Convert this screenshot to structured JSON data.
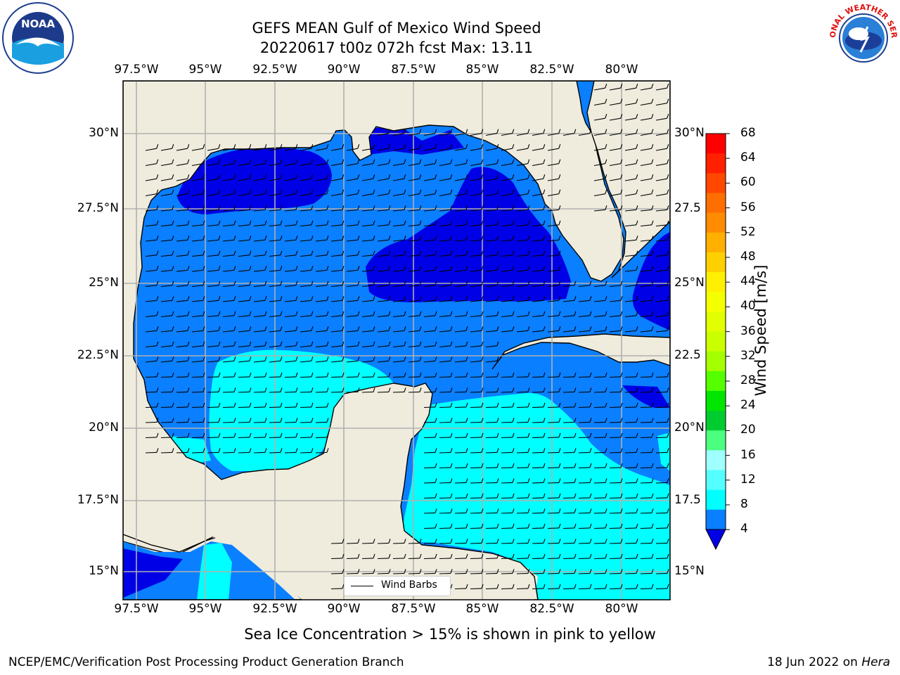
{
  "title": {
    "line1": "GEFS MEAN Gulf of Mexico Wind Speed",
    "line2": "20220617 t00z 072h fcst   Max: 13.11"
  },
  "logos": {
    "left": {
      "name": "NOAA",
      "ring_text": "NATIONAL OCEANIC AND ATMOSPHERIC ADMINISTRATION · U.S. DEPARTMENT OF COMMERCE"
    },
    "right": {
      "ring_text": "NATIONAL WEATHER SERVICE"
    }
  },
  "map": {
    "lon_labels": [
      "97.5°W",
      "95°W",
      "92.5°W",
      "90°W",
      "87.5°W",
      "85°W",
      "82.5°W",
      "80°W"
    ],
    "lat_labels_left": [
      "30°N",
      "27.5°N",
      "25°N",
      "22.5°N",
      "20°N",
      "17.5°N",
      "15°N"
    ],
    "lat_labels_right": [
      "30°N",
      "27.5",
      "25°N",
      "22.5",
      "20°N",
      "17.5",
      "15°N"
    ],
    "legend_label": "Wind Barbs",
    "colors": {
      "land": "#efecdd",
      "wind_lt8": "#0a7fff",
      "wind_lt4": "#0000e6",
      "wind_8_12": "#00ffff"
    }
  },
  "colorbar": {
    "label": "Wind Speed [m/s]",
    "ticks": [
      "68",
      "64",
      "60",
      "56",
      "52",
      "48",
      "44",
      "40",
      "36",
      "32",
      "28",
      "24",
      "20",
      "16",
      "12",
      "8",
      "4"
    ],
    "colors": [
      "#ff0000",
      "#ff2000",
      "#ff4700",
      "#ff6e00",
      "#ff8c00",
      "#ffb000",
      "#ffd000",
      "#ffef00",
      "#f4ff00",
      "#e1ff00",
      "#caff00",
      "#a4ff00",
      "#55ff00",
      "#00e600",
      "#00cc2f",
      "#4cff7f",
      "#a0ffff",
      "#55ffff",
      "#00ffff",
      "#0a7fff",
      "#0000e6"
    ]
  },
  "caption": "Sea Ice Concentration > 15% is shown in pink to yellow",
  "footer": {
    "left": "NCEP/EMC/Verification Post Processing Product Generation Branch",
    "right_date": "18 Jun 2022 on ",
    "right_host": "Hera"
  }
}
